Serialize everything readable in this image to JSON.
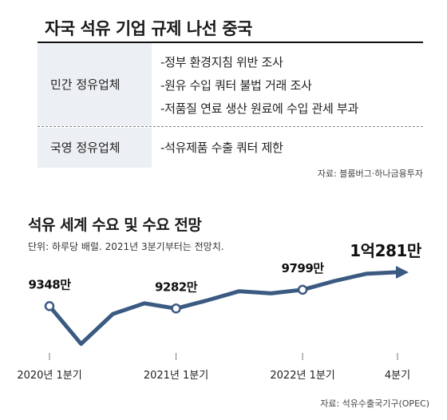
{
  "table": {
    "title": "자국 석유 기업 규제 나선 중국",
    "rows": [
      {
        "category": "민간 정유업체",
        "items": [
          "-정부 환경지침 위반 조사",
          "-원유 수입 쿼터 불법 거래 조사",
          "-저품질 연료 생산 원료에 수입 관세 부과"
        ]
      },
      {
        "category": "국영 정유업체",
        "items": [
          "-석유제품 수출 쿼터 제한"
        ]
      }
    ],
    "source": "자료: 블룸버그·하나금융투자"
  },
  "chart_data": {
    "type": "line",
    "title": "석유 세계 수요 및 수요 전망",
    "subtitle": "단위: 하루당 배럴. 2021년 3분기부터는 전망치.",
    "x": [
      "2020Q1",
      "2020Q2",
      "2020Q3",
      "2020Q4",
      "2021Q1",
      "2021Q2",
      "2021Q3",
      "2021Q4",
      "2022Q1",
      "2022Q2",
      "2022Q3",
      "2022Q4"
    ],
    "tick_labels": [
      {
        "index": 0,
        "label": "2020년 1분기"
      },
      {
        "index": 4,
        "label": "2021년 1분기"
      },
      {
        "index": 8,
        "label": "2022년 1분기"
      },
      {
        "index": 11,
        "label": "4분기"
      }
    ],
    "series": [
      {
        "values": [
          9348,
          8306,
          9130,
          9425,
          9282,
          9510,
          9760,
          9700,
          9799,
          10040,
          10240,
          10281
        ],
        "color": "#3b5a82",
        "marker_indices": [
          0,
          4,
          8
        ],
        "arrow_end": true
      }
    ],
    "data_labels": [
      {
        "index": 0,
        "label": "9348만"
      },
      {
        "index": 4,
        "label": "9282만"
      },
      {
        "index": 8,
        "label": "9799만"
      },
      {
        "index": 11,
        "label": "1억281만"
      }
    ],
    "ylim": [
      8100,
      10700
    ],
    "grid": false,
    "source": "자료: 석유수출국기구(OPEC)"
  }
}
